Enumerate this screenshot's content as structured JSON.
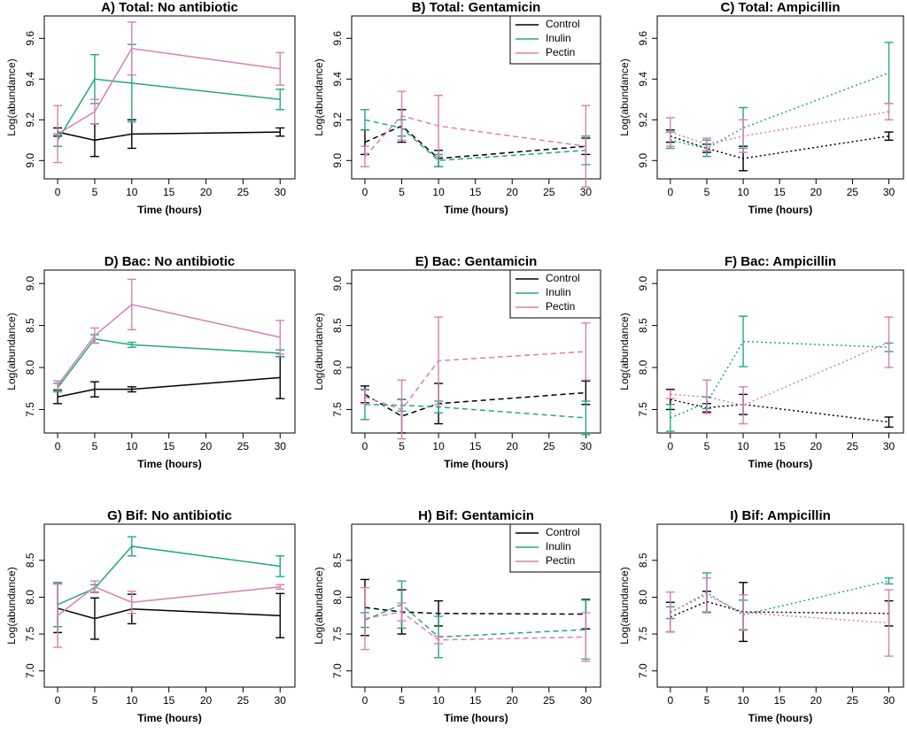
{
  "chart_data": [
    {
      "type": "line",
      "title": "A) Total: No antibiotic",
      "xlabel": "Time (hours)",
      "ylabel": "Log(abundance)",
      "linestyle": "solid",
      "x": [
        0,
        5,
        10,
        30
      ],
      "xlim": [
        -1.8,
        32
      ],
      "xticks": [
        0,
        5,
        10,
        15,
        20,
        25,
        30
      ],
      "ylim": [
        8.91,
        9.71
      ],
      "yticks": [
        {
          "value": 9,
          "label": "9.0"
        },
        9.2,
        9.4,
        9.6
      ],
      "series": [
        {
          "color": "#000000",
          "values": [
            9.14,
            9.1,
            9.13,
            9.14
          ],
          "errors": [
            0.02,
            0.08,
            0.07,
            0.02
          ]
        },
        {
          "color": "#22a884",
          "values": [
            9.1,
            9.4,
            9.38,
            9.3
          ],
          "errors": [
            0.03,
            0.12,
            0.19,
            0.05
          ]
        },
        {
          "color": "#d87fb3",
          "values": [
            9.13,
            9.24,
            9.55,
            9.45
          ],
          "errors": [
            0.14,
            0.06,
            0.13,
            0.08
          ]
        }
      ]
    },
    {
      "type": "line",
      "title": "B) Total: Gentamicin",
      "xlabel": "Time (hours)",
      "ylabel": "Log(abundance)",
      "linestyle": "dashed",
      "legend": "top-right",
      "x": [
        0,
        5,
        10,
        30
      ],
      "xlim": [
        -1.8,
        32
      ],
      "xticks": [
        0,
        5,
        10,
        15,
        20,
        25,
        30
      ],
      "ylim": [
        8.91,
        9.71
      ],
      "yticks": [
        {
          "value": 9,
          "label": "9.0"
        },
        9.2,
        9.4,
        9.6
      ],
      "series": [
        {
          "name": "Control",
          "color": "#000000",
          "values": [
            9.09,
            9.17,
            9.01,
            9.07
          ],
          "errors": [
            0.06,
            0.08,
            0.04,
            0.04
          ]
        },
        {
          "name": "Inulin",
          "color": "#22a884",
          "values": [
            9.2,
            9.16,
            9.0,
            9.05
          ],
          "errors": [
            0.05,
            0.04,
            0.03,
            0.07
          ]
        },
        {
          "name": "Pectin",
          "color": "#d87fb3",
          "values": [
            9.02,
            9.22,
            9.17,
            9.07
          ],
          "errors": [
            0.05,
            0.12,
            0.15,
            0.2
          ]
        }
      ]
    },
    {
      "type": "line",
      "title": "C) Total: Ampicillin",
      "xlabel": "Time (hours)",
      "ylabel": "Log(abundance)",
      "linestyle": "dotted",
      "x": [
        0,
        5,
        10,
        30
      ],
      "xlim": [
        -1.8,
        32
      ],
      "xticks": [
        0,
        5,
        10,
        15,
        20,
        25,
        30
      ],
      "ylim": [
        8.91,
        9.71
      ],
      "yticks": [
        {
          "value": 9,
          "label": "9.0"
        },
        9.2,
        9.4,
        9.6
      ],
      "series": [
        {
          "color": "#000000",
          "values": [
            9.12,
            9.06,
            9.01,
            9.12
          ],
          "errors": [
            0.03,
            0.02,
            0.06,
            0.02
          ]
        },
        {
          "color": "#22a884",
          "values": [
            9.1,
            9.06,
            9.16,
            9.43
          ],
          "errors": [
            0.04,
            0.04,
            0.1,
            0.15
          ]
        },
        {
          "color": "#d87fb3",
          "values": [
            9.14,
            9.08,
            9.12,
            9.24
          ],
          "errors": [
            0.07,
            0.03,
            0.08,
            0.04
          ]
        }
      ]
    },
    {
      "type": "line",
      "title": "D) Bac: No antibiotic",
      "xlabel": "Time (hours)",
      "ylabel": "Log(abundance)",
      "linestyle": "solid",
      "x": [
        0,
        5,
        10,
        30
      ],
      "xlim": [
        -1.8,
        32
      ],
      "xticks": [
        0,
        5,
        10,
        15,
        20,
        25,
        30
      ],
      "ylim": [
        7.22,
        9.16
      ],
      "yticks": [
        7.5,
        {
          "value": 8,
          "label": "8.0"
        },
        8.5,
        {
          "value": 9,
          "label": "9.0"
        }
      ],
      "series": [
        {
          "color": "#000000",
          "values": [
            7.65,
            7.74,
            7.74,
            7.88
          ],
          "errors": [
            0.08,
            0.09,
            0.03,
            0.25
          ]
        },
        {
          "color": "#22a884",
          "values": [
            7.76,
            8.34,
            8.27,
            8.17
          ],
          "errors": [
            0.05,
            0.05,
            0.03,
            0.04
          ]
        },
        {
          "color": "#d87fb3",
          "values": [
            7.79,
            8.38,
            8.75,
            8.36
          ],
          "errors": [
            0.05,
            0.09,
            0.3,
            0.2
          ]
        }
      ]
    },
    {
      "type": "line",
      "title": "E) Bac: Gentamicin",
      "xlabel": "Time (hours)",
      "ylabel": "Log(abundance)",
      "linestyle": "dashed",
      "legend": "top-right",
      "x": [
        0,
        5,
        10,
        30
      ],
      "xlim": [
        -1.8,
        32
      ],
      "xticks": [
        0,
        5,
        10,
        15,
        20,
        25,
        30
      ],
      "ylim": [
        7.22,
        9.16
      ],
      "yticks": [
        7.5,
        {
          "value": 8,
          "label": "8.0"
        },
        8.5,
        {
          "value": 9,
          "label": "9.0"
        }
      ],
      "series": [
        {
          "name": "Control",
          "color": "#000000",
          "values": [
            7.68,
            7.42,
            7.57,
            7.7
          ],
          "errors": [
            0.1,
            0.2,
            0.24,
            0.14
          ]
        },
        {
          "name": "Inulin",
          "color": "#22a884",
          "values": [
            7.56,
            7.55,
            7.53,
            7.4
          ],
          "errors": [
            0.18,
            0.07,
            0.07,
            0.2
          ]
        },
        {
          "name": "Pectin",
          "color": "#d87fb3",
          "values": [
            7.65,
            7.5,
            8.08,
            8.19
          ],
          "errors": [
            0.08,
            0.35,
            0.52,
            0.34
          ]
        }
      ]
    },
    {
      "type": "line",
      "title": "F) Bac: Ampicillin",
      "xlabel": "Time (hours)",
      "ylabel": "Log(abundance)",
      "linestyle": "dotted",
      "x": [
        0,
        5,
        10,
        30
      ],
      "xlim": [
        -1.8,
        32
      ],
      "xticks": [
        0,
        5,
        10,
        15,
        20,
        25,
        30
      ],
      "ylim": [
        7.22,
        9.16
      ],
      "yticks": [
        7.5,
        {
          "value": 8,
          "label": "8.0"
        },
        8.5,
        {
          "value": 9,
          "label": "9.0"
        }
      ],
      "series": [
        {
          "color": "#000000",
          "values": [
            7.62,
            7.52,
            7.56,
            7.35
          ],
          "errors": [
            0.12,
            0.05,
            0.12,
            0.06
          ]
        },
        {
          "color": "#22a884",
          "values": [
            7.4,
            7.58,
            8.31,
            8.24
          ],
          "errors": [
            0.16,
            0.07,
            0.3,
            0.05
          ]
        },
        {
          "color": "#d87fb3",
          "values": [
            7.68,
            7.65,
            7.55,
            8.3
          ],
          "errors": [
            0.05,
            0.2,
            0.22,
            0.3
          ]
        }
      ]
    },
    {
      "type": "line",
      "title": "G) Bif: No antibiotic",
      "xlabel": "Time (hours)",
      "ylabel": "Log(abundance)",
      "linestyle": "solid",
      "x": [
        0,
        5,
        10,
        30
      ],
      "xlim": [
        -1.8,
        32
      ],
      "xticks": [
        0,
        5,
        10,
        15,
        20,
        25,
        30
      ],
      "ylim": [
        6.78,
        8.99
      ],
      "yticks": [
        {
          "value": 7,
          "label": "7.0"
        },
        7.5,
        {
          "value": 8,
          "label": "8.0"
        },
        8.5
      ],
      "series": [
        {
          "color": "#000000",
          "values": [
            7.85,
            7.71,
            7.84,
            7.75
          ],
          "errors": [
            0.33,
            0.28,
            0.2,
            0.3
          ]
        },
        {
          "color": "#22a884",
          "values": [
            7.9,
            8.12,
            8.69,
            8.42
          ],
          "errors": [
            0.3,
            0.05,
            0.13,
            0.14
          ]
        },
        {
          "color": "#d87fb3",
          "values": [
            7.75,
            8.14,
            7.93,
            8.14
          ],
          "errors": [
            0.43,
            0.08,
            0.15,
            0.03
          ]
        }
      ]
    },
    {
      "type": "line",
      "title": "H) Bif: Gentamicin",
      "xlabel": "Time (hours)",
      "ylabel": "Log(abundance)",
      "linestyle": "dashed",
      "legend": "top-right",
      "x": [
        0,
        5,
        10,
        30
      ],
      "xlim": [
        -1.8,
        32
      ],
      "xticks": [
        0,
        5,
        10,
        15,
        20,
        25,
        30
      ],
      "ylim": [
        6.78,
        8.99
      ],
      "yticks": [
        {
          "value": 7,
          "label": "7.0"
        },
        7.5,
        {
          "value": 8,
          "label": "8.0"
        },
        8.5
      ],
      "series": [
        {
          "name": "Control",
          "color": "#000000",
          "values": [
            7.86,
            7.8,
            7.78,
            7.77
          ],
          "errors": [
            0.38,
            0.3,
            0.17,
            0.2
          ]
        },
        {
          "name": "Inulin",
          "color": "#22a884",
          "values": [
            7.69,
            7.9,
            7.46,
            7.56
          ],
          "errors": [
            0.1,
            0.32,
            0.28,
            0.4
          ]
        },
        {
          "name": "Pectin",
          "color": "#d87fb3",
          "values": [
            7.71,
            7.8,
            7.42,
            7.46
          ],
          "errors": [
            0.42,
            0.12,
            0.05,
            0.33
          ]
        }
      ]
    },
    {
      "type": "line",
      "title": "I) Bif: Ampicillin",
      "xlabel": "Time (hours)",
      "ylabel": "Log(abundance)",
      "linestyle": "dotted",
      "x": [
        0,
        5,
        10,
        30
      ],
      "xlim": [
        -1.8,
        32
      ],
      "xticks": [
        0,
        5,
        10,
        15,
        20,
        25,
        30
      ],
      "ylim": [
        6.78,
        8.99
      ],
      "yticks": [
        {
          "value": 7,
          "label": "7.0"
        },
        7.5,
        {
          "value": 8,
          "label": "8.0"
        },
        8.5
      ],
      "series": [
        {
          "color": "#000000",
          "values": [
            7.73,
            7.94,
            7.8,
            7.78
          ],
          "errors": [
            0.2,
            0.14,
            0.4,
            0.17
          ]
        },
        {
          "color": "#22a884",
          "values": [
            7.79,
            8.06,
            7.76,
            8.22
          ],
          "errors": [
            0.08,
            0.27,
            0.2,
            0.04
          ]
        },
        {
          "color": "#d87fb3",
          "values": [
            7.8,
            8.03,
            7.79,
            7.65
          ],
          "errors": [
            0.27,
            0.23,
            0.24,
            0.45
          ]
        }
      ]
    }
  ]
}
